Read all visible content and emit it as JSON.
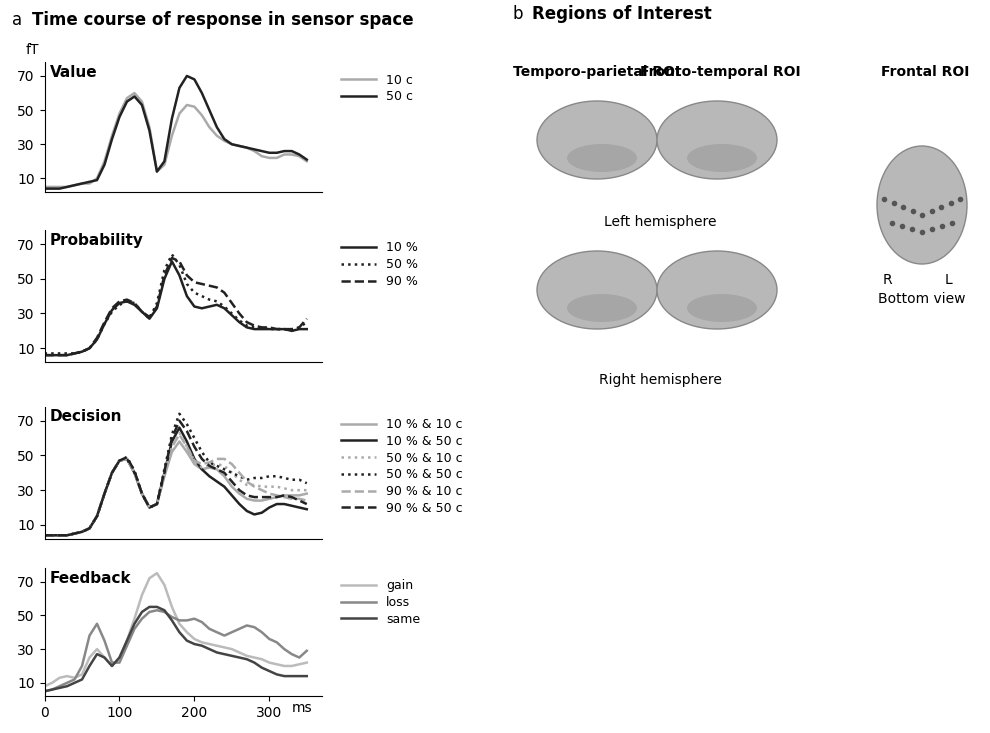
{
  "chart_data": [
    {
      "type": "line",
      "title": "Value",
      "y_label": "fT",
      "x": [
        0,
        10,
        20,
        30,
        40,
        50,
        60,
        70,
        80,
        90,
        100,
        110,
        120,
        130,
        140,
        150,
        160,
        170,
        180,
        190,
        200,
        210,
        220,
        230,
        240,
        250,
        260,
        270,
        280,
        290,
        300,
        310,
        320,
        330,
        340,
        350
      ],
      "xlim": [
        0,
        370
      ],
      "ylim": [
        2,
        78
      ],
      "yticks": [
        10,
        30,
        50,
        70
      ],
      "tick_labels": "y",
      "legend": "upper left",
      "series": [
        {
          "name": "10 c",
          "color": "#aaaaaa",
          "line_style": "solid",
          "values": [
            5,
            5,
            5,
            5,
            6,
            7,
            7,
            10,
            20,
            35,
            48,
            57,
            60,
            55,
            40,
            14,
            18,
            35,
            48,
            53,
            52,
            47,
            40,
            35,
            32,
            30,
            29,
            28,
            26,
            23,
            22,
            22,
            24,
            24,
            23,
            20
          ]
        },
        {
          "name": "50 c",
          "color": "#222222",
          "line_style": "solid",
          "values": [
            4,
            4,
            4,
            5,
            6,
            7,
            8,
            9,
            18,
            33,
            46,
            55,
            58,
            53,
            38,
            14,
            20,
            45,
            63,
            70,
            68,
            60,
            50,
            40,
            33,
            30,
            29,
            28,
            27,
            26,
            25,
            25,
            26,
            26,
            24,
            21
          ]
        }
      ]
    },
    {
      "type": "line",
      "title": "Probability",
      "x": [
        0,
        10,
        20,
        30,
        40,
        50,
        60,
        70,
        80,
        90,
        100,
        110,
        120,
        130,
        140,
        150,
        160,
        170,
        180,
        190,
        200,
        210,
        220,
        230,
        240,
        250,
        260,
        270,
        280,
        290,
        300,
        310,
        320,
        330,
        340,
        350
      ],
      "xlim": [
        0,
        370
      ],
      "ylim": [
        2,
        78
      ],
      "yticks": [
        10,
        30,
        50,
        70
      ],
      "tick_labels": "y",
      "legend": "upper left",
      "series": [
        {
          "name": "10 %",
          "color": "#222222",
          "line_style": "solid",
          "values": [
            6,
            6,
            6,
            6,
            7,
            8,
            10,
            15,
            24,
            32,
            36,
            37,
            35,
            31,
            27,
            33,
            50,
            60,
            52,
            40,
            34,
            33,
            34,
            35,
            33,
            29,
            25,
            22,
            21,
            21,
            21,
            21,
            21,
            20,
            21,
            21
          ]
        },
        {
          "name": "50 %",
          "color": "#222222",
          "line_style": "dotted",
          "values": [
            7,
            7,
            7,
            7,
            7,
            8,
            10,
            15,
            24,
            31,
            35,
            37,
            36,
            31,
            27,
            36,
            55,
            64,
            58,
            47,
            42,
            40,
            38,
            37,
            34,
            30,
            26,
            23,
            22,
            22,
            21,
            21,
            21,
            20,
            22,
            25
          ]
        },
        {
          "name": "90 %",
          "color": "#222222",
          "line_style": "dashed",
          "values": [
            6,
            6,
            6,
            6,
            7,
            8,
            10,
            16,
            25,
            33,
            37,
            38,
            36,
            31,
            28,
            34,
            52,
            62,
            60,
            52,
            48,
            47,
            46,
            45,
            42,
            36,
            30,
            25,
            23,
            22,
            22,
            21,
            21,
            21,
            22,
            27
          ]
        }
      ]
    },
    {
      "type": "line",
      "title": "Decision",
      "x": [
        0,
        10,
        20,
        30,
        40,
        50,
        60,
        70,
        80,
        90,
        100,
        110,
        120,
        130,
        140,
        150,
        160,
        170,
        180,
        190,
        200,
        210,
        220,
        230,
        240,
        250,
        260,
        270,
        280,
        290,
        300,
        310,
        320,
        330,
        340,
        350
      ],
      "xlim": [
        0,
        370
      ],
      "ylim": [
        2,
        78
      ],
      "yticks": [
        10,
        30,
        50,
        70
      ],
      "tick_labels": "y",
      "legend": "upper left",
      "series": [
        {
          "name": "10 % & 10 c",
          "color": "#aaaaaa",
          "line_style": "solid",
          "values": [
            4,
            4,
            4,
            4,
            5,
            6,
            8,
            15,
            28,
            40,
            47,
            48,
            40,
            28,
            20,
            22,
            38,
            52,
            58,
            52,
            45,
            42,
            43,
            42,
            38,
            32,
            28,
            25,
            24,
            24,
            25,
            26,
            27,
            27,
            27,
            28
          ]
        },
        {
          "name": "10 % & 50 c",
          "color": "#222222",
          "line_style": "solid",
          "values": [
            4,
            4,
            4,
            4,
            5,
            6,
            8,
            15,
            28,
            40,
            47,
            48,
            40,
            28,
            20,
            22,
            40,
            58,
            66,
            58,
            48,
            42,
            38,
            35,
            32,
            27,
            22,
            18,
            16,
            17,
            20,
            22,
            22,
            21,
            20,
            19
          ]
        },
        {
          "name": "50 % & 10 c",
          "color": "#aaaaaa",
          "line_style": "dotted",
          "values": [
            4,
            4,
            4,
            4,
            5,
            6,
            8,
            15,
            28,
            40,
            47,
            48,
            40,
            28,
            20,
            22,
            39,
            55,
            63,
            55,
            47,
            43,
            44,
            45,
            44,
            40,
            36,
            33,
            33,
            32,
            32,
            32,
            31,
            30,
            30,
            30
          ]
        },
        {
          "name": "50 % & 50 c",
          "color": "#222222",
          "line_style": "dotted",
          "values": [
            4,
            4,
            4,
            4,
            5,
            6,
            8,
            15,
            28,
            40,
            47,
            49,
            41,
            28,
            20,
            22,
            42,
            62,
            74,
            68,
            60,
            52,
            46,
            44,
            42,
            40,
            38,
            36,
            37,
            37,
            38,
            38,
            37,
            36,
            36,
            34
          ]
        },
        {
          "name": "90 % & 10 c",
          "color": "#aaaaaa",
          "line_style": "dashed",
          "values": [
            4,
            4,
            4,
            4,
            5,
            6,
            8,
            15,
            28,
            40,
            47,
            48,
            40,
            28,
            20,
            22,
            39,
            55,
            62,
            55,
            47,
            45,
            46,
            48,
            48,
            45,
            40,
            35,
            32,
            30,
            28,
            27,
            26,
            25,
            25,
            24
          ]
        },
        {
          "name": "90 % & 50 c",
          "color": "#222222",
          "line_style": "dashed",
          "values": [
            4,
            4,
            4,
            4,
            5,
            6,
            8,
            15,
            28,
            40,
            47,
            49,
            41,
            28,
            20,
            22,
            41,
            60,
            70,
            64,
            55,
            48,
            44,
            42,
            40,
            35,
            30,
            27,
            26,
            26,
            26,
            26,
            27,
            26,
            24,
            22
          ]
        }
      ]
    },
    {
      "type": "line",
      "title": "Feedback",
      "x_label": "ms",
      "x": [
        0,
        10,
        20,
        30,
        40,
        50,
        60,
        70,
        80,
        90,
        100,
        110,
        120,
        130,
        140,
        150,
        160,
        170,
        180,
        190,
        200,
        210,
        220,
        230,
        240,
        250,
        260,
        270,
        280,
        290,
        300,
        310,
        320,
        330,
        340,
        350
      ],
      "xlim": [
        0,
        370
      ],
      "xticks": [
        0,
        100,
        200,
        300
      ],
      "ylim": [
        2,
        78
      ],
      "yticks": [
        10,
        30,
        50,
        70
      ],
      "legend": "upper left",
      "series": [
        {
          "name": "gain",
          "color": "#bbbbbb",
          "line_style": "solid",
          "values": [
            8,
            10,
            13,
            14,
            13,
            15,
            25,
            30,
            25,
            20,
            25,
            35,
            48,
            62,
            72,
            75,
            68,
            55,
            45,
            40,
            36,
            34,
            33,
            32,
            31,
            30,
            28,
            26,
            25,
            24,
            22,
            21,
            20,
            20,
            21,
            22
          ]
        },
        {
          "name": "loss",
          "color": "#888888",
          "line_style": "solid",
          "values": [
            5,
            6,
            8,
            10,
            12,
            20,
            38,
            45,
            35,
            22,
            22,
            32,
            42,
            48,
            52,
            53,
            52,
            49,
            47,
            47,
            48,
            46,
            42,
            40,
            38,
            40,
            42,
            44,
            43,
            40,
            36,
            34,
            30,
            27,
            25,
            29
          ]
        },
        {
          "name": "same",
          "color": "#444444",
          "line_style": "solid",
          "values": [
            5,
            6,
            7,
            8,
            10,
            12,
            20,
            27,
            25,
            20,
            25,
            35,
            45,
            52,
            55,
            55,
            53,
            47,
            40,
            35,
            33,
            32,
            30,
            28,
            27,
            26,
            25,
            24,
            22,
            19,
            17,
            15,
            14,
            14,
            14,
            14
          ]
        }
      ]
    }
  ],
  "panel_a": {
    "letter": "a",
    "title": "Time course of response in sensor space"
  },
  "panel_b": {
    "letter": "b",
    "title": "Regions of Interest",
    "rois": [
      "Temporo-parietal ROI",
      "Fronto-temporal ROI",
      "Frontal ROI"
    ],
    "hemispheres": [
      "Left hemisphere",
      "Right hemisphere"
    ],
    "bottom_view": {
      "right": "R",
      "left": "L",
      "caption": "Bottom view"
    }
  }
}
